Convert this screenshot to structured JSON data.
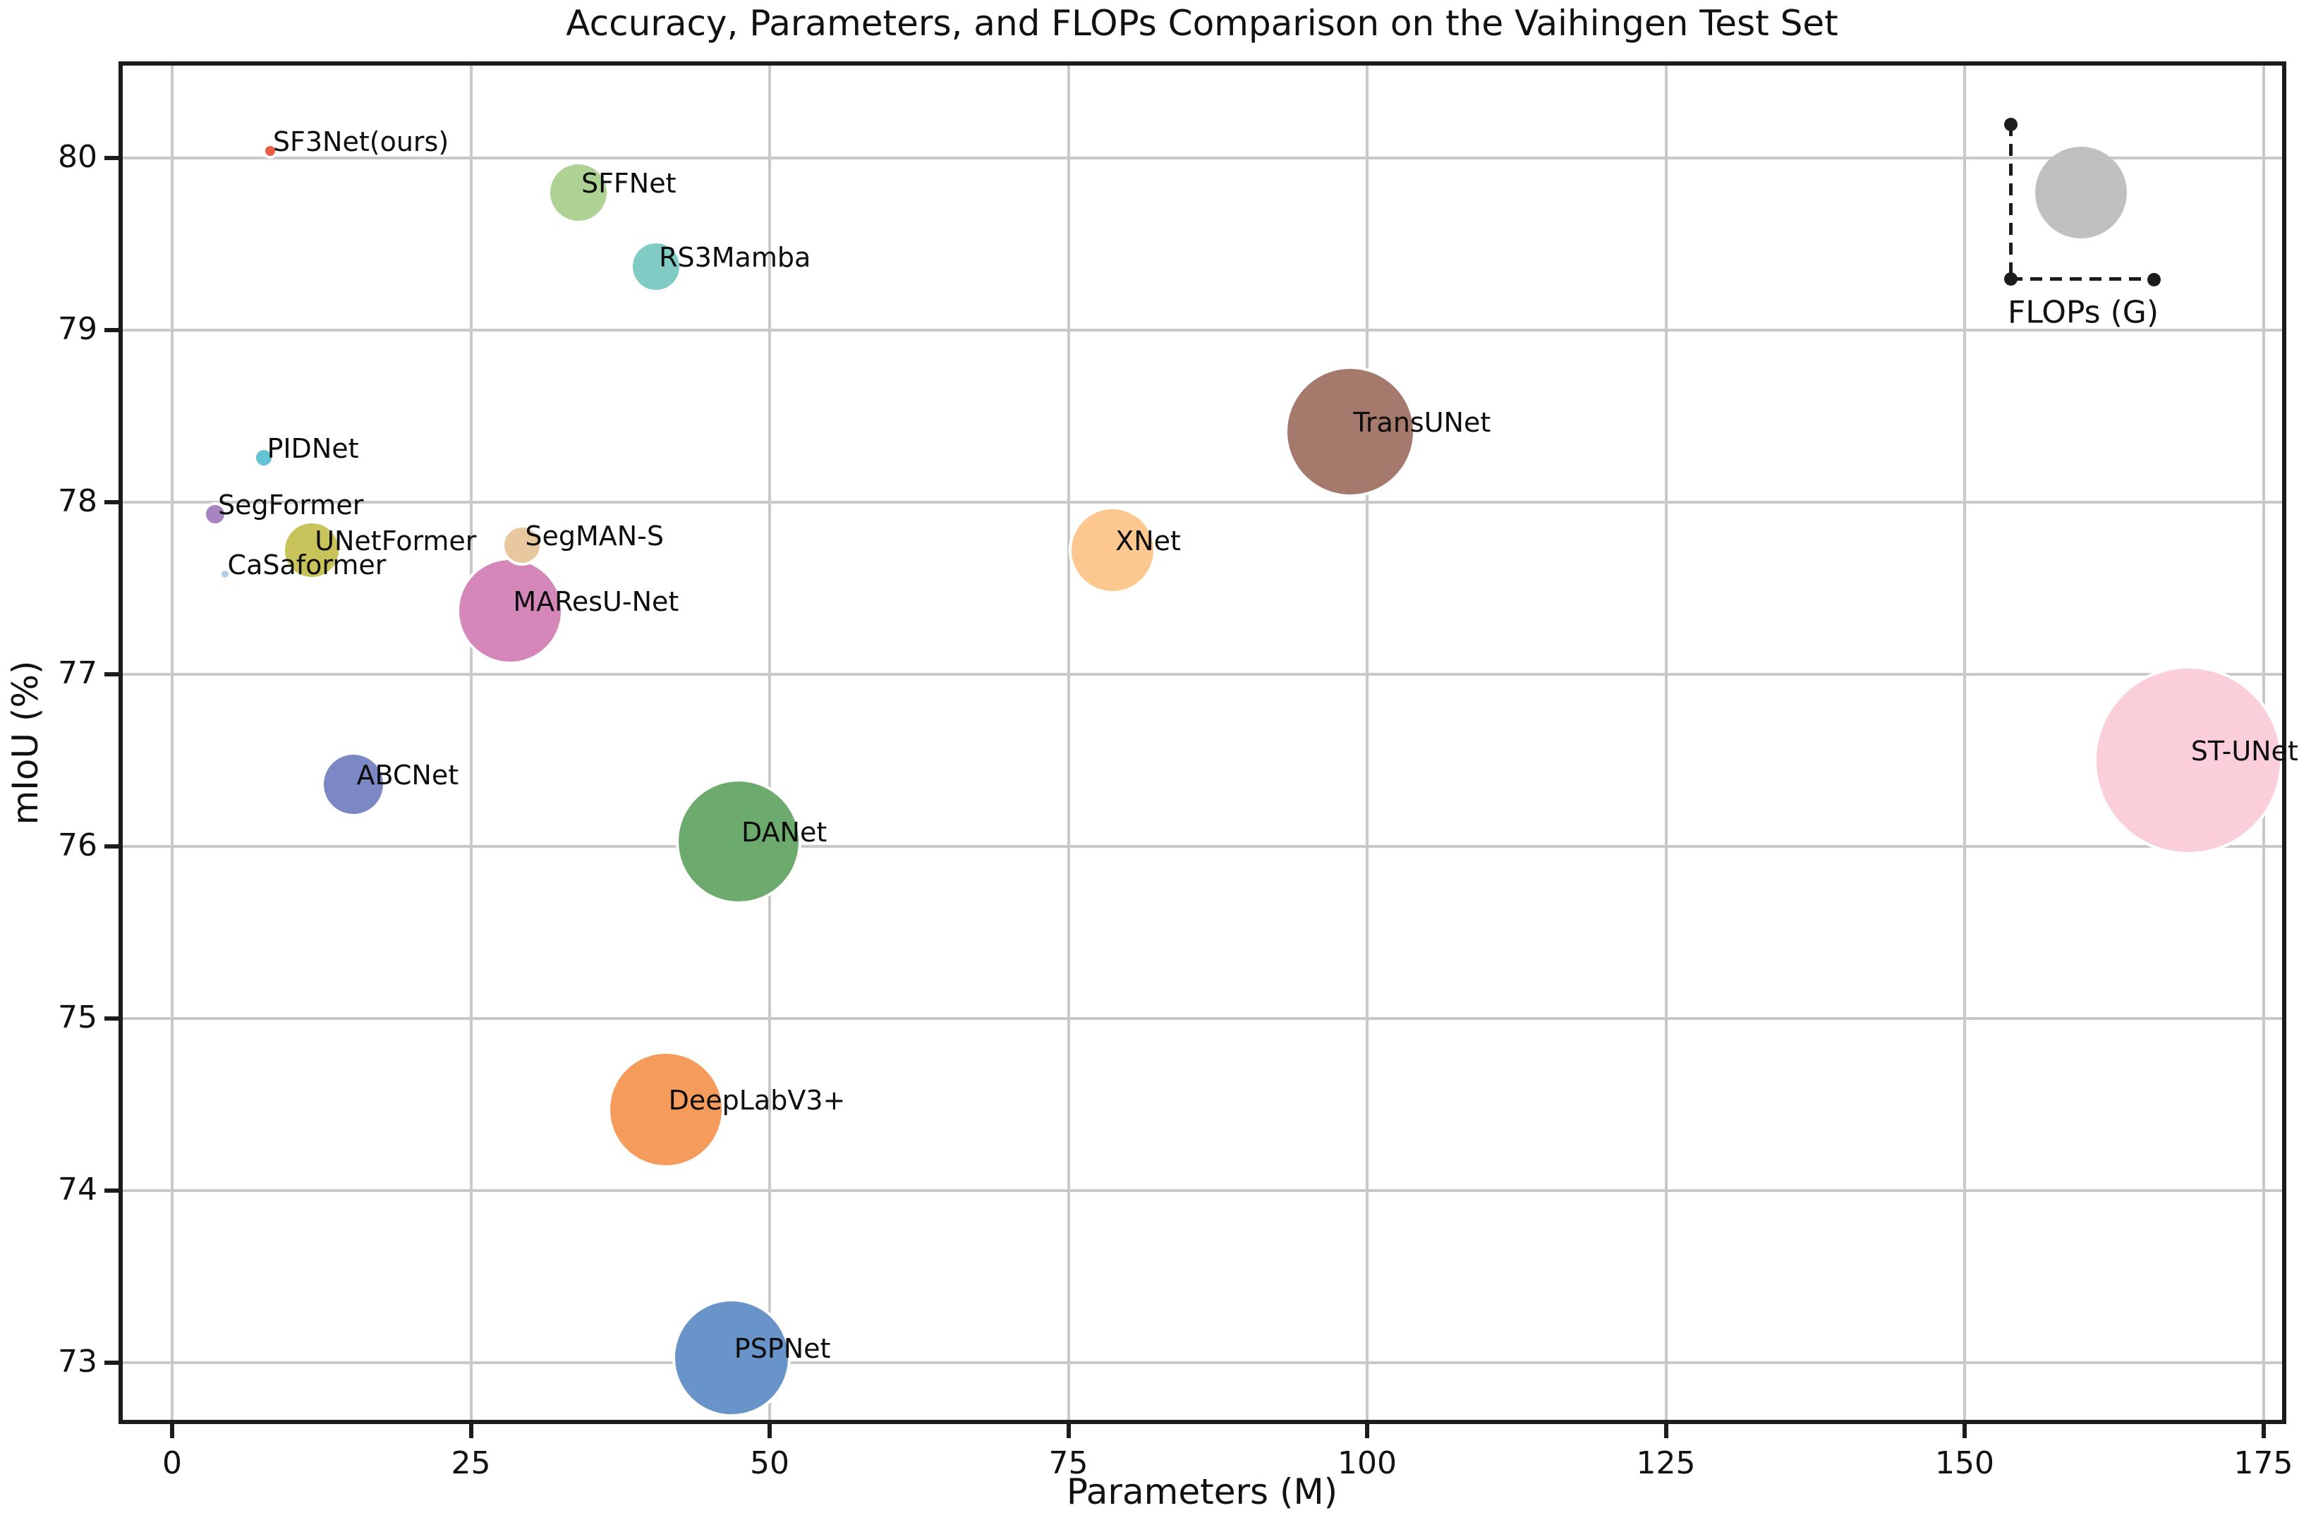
{
  "title": "Accuracy, Parameters, and FLOPs Comparison on the Vaihingen Test Set",
  "axes": {
    "xlabel": "Parameters (M)",
    "ylabel": "mIoU (%)",
    "x_ticks": [
      "0",
      "25",
      "50",
      "75",
      "100",
      "125",
      "150",
      "175"
    ],
    "y_ticks": [
      "73",
      "74",
      "75",
      "76",
      "77",
      "78",
      "79",
      "80"
    ]
  },
  "legend": {
    "label": "FLOPs (G)",
    "bubble_color": "#c0c0c0"
  },
  "chart_data": {
    "type": "scatter",
    "title": "Accuracy, Parameters, and FLOPs Comparison on the Vaihingen Test Set",
    "xlabel": "Parameters (M)",
    "ylabel": "mIoU (%)",
    "xlim": [
      -4.5,
      177
    ],
    "ylim": [
      72.66,
      80.56
    ],
    "grid": true,
    "legend_position": "upper right",
    "size_encodes": "FLOPs (G)",
    "points": [
      {
        "name": "SF3Net(ours)",
        "params_m": 8.2,
        "miou": 80.04,
        "bubble_radius_px": 7,
        "color": "#e85c43"
      },
      {
        "name": "SFFNet",
        "params_m": 34.0,
        "miou": 79.8,
        "bubble_radius_px": 40,
        "color": "#aed293"
      },
      {
        "name": "RS3Mamba",
        "params_m": 40.5,
        "miou": 79.37,
        "bubble_radius_px": 33,
        "color": "#80cbc4"
      },
      {
        "name": "PIDNet",
        "params_m": 7.7,
        "miou": 78.26,
        "bubble_radius_px": 11,
        "color": "#62c4d5"
      },
      {
        "name": "SegFormer",
        "params_m": 3.6,
        "miou": 77.93,
        "bubble_radius_px": 13,
        "color": "#a884c0"
      },
      {
        "name": "UNetFormer",
        "params_m": 11.7,
        "miou": 77.72,
        "bubble_radius_px": 38,
        "color": "#c9c35c"
      },
      {
        "name": "CaSaformer",
        "params_m": 4.4,
        "miou": 77.58,
        "bubble_radius_px": 5,
        "color": "#b5cde6"
      },
      {
        "name": "MAResU-Net",
        "params_m": 28.3,
        "miou": 77.37,
        "bubble_radius_px": 72,
        "color": "#d687ba"
      },
      {
        "name": "SegMAN-S",
        "params_m": 29.3,
        "miou": 77.75,
        "bubble_radius_px": 25,
        "color": "#e8c89e"
      },
      {
        "name": "TransUNet",
        "params_m": 98.6,
        "miou": 78.41,
        "bubble_radius_px": 89,
        "color": "#a5796c"
      },
      {
        "name": "XNet",
        "params_m": 78.7,
        "miou": 77.72,
        "bubble_radius_px": 58,
        "color": "#fcc890"
      },
      {
        "name": "ABCNet",
        "params_m": 15.2,
        "miou": 76.36,
        "bubble_radius_px": 42,
        "color": "#7c88c4"
      },
      {
        "name": "DANet",
        "params_m": 47.4,
        "miou": 76.03,
        "bubble_radius_px": 85,
        "color": "#6daa6d"
      },
      {
        "name": "DeepLabV3+",
        "params_m": 41.3,
        "miou": 74.47,
        "bubble_radius_px": 79,
        "color": "#f59b5b"
      },
      {
        "name": "PSPNet",
        "params_m": 46.8,
        "miou": 73.03,
        "bubble_radius_px": 80,
        "color": "#6994c9"
      },
      {
        "name": "ST-UNet",
        "params_m": 168.7,
        "miou": 76.5,
        "bubble_radius_px": 130,
        "color": "#facfd9"
      }
    ]
  }
}
